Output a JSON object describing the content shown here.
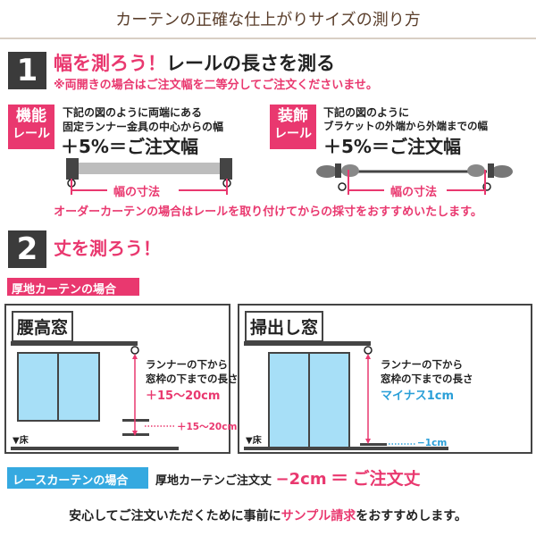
{
  "title": "カーテンの正確な仕上がりサイズの測り方",
  "colors": {
    "accent": "#e9386f",
    "dark": "#3b3b3b",
    "lace": "#35a9e0",
    "window": "#a7dff7"
  },
  "step1": {
    "number": "1",
    "heading_pink": "幅を測ろう！",
    "heading_black": "レールの長さを測る",
    "note": "※両開きの場合はご注文幅を二等分してご注文くださいませ。",
    "functional": {
      "badge_line1": "機能",
      "badge_line2": "レール",
      "desc1": "下記の図のように両端にある",
      "desc2": "固定ランナー金具の中心からの幅",
      "formula": "＋5%＝ご注文幅",
      "measure_label": "幅の寸法"
    },
    "decorative": {
      "badge_line1": "装飾",
      "badge_line2": "レール",
      "desc1": "下記の図のように",
      "desc2": "ブラケットの外端から外端までの幅",
      "formula": "＋5%＝ご注文幅",
      "measure_label": "幅の寸法"
    },
    "advice": "オーダーカーテンの場合はレールを取り付けてからの採寸をおすすめいたします。"
  },
  "step2": {
    "number": "2",
    "heading": "丈を測ろう！",
    "thick_label": "厚地カーテンの場合",
    "waist_window": {
      "title": "腰高窓",
      "desc1": "ランナーの下から",
      "desc2": "窓枠の下までの長さ",
      "adjust": "＋15〜20cm",
      "side_label": "＋15〜20cm",
      "floor": "▼床"
    },
    "floor_window": {
      "title": "掃出し窓",
      "desc1": "ランナーの下から",
      "desc2": "窓枠の下までの長さ",
      "adjust": "マイナス1cm",
      "side_label": "−1cm",
      "floor": "▼床"
    },
    "lace": {
      "badge": "レースカーテンの場合",
      "text": "厚地カーテンご注文丈",
      "minus": "−2cm",
      "equals": "＝",
      "result": "ご注文丈"
    }
  },
  "footer": {
    "part1": "安心してご注文いただくために事前に",
    "part2": "サンプル請求",
    "part3": "をおすすめします。"
  }
}
